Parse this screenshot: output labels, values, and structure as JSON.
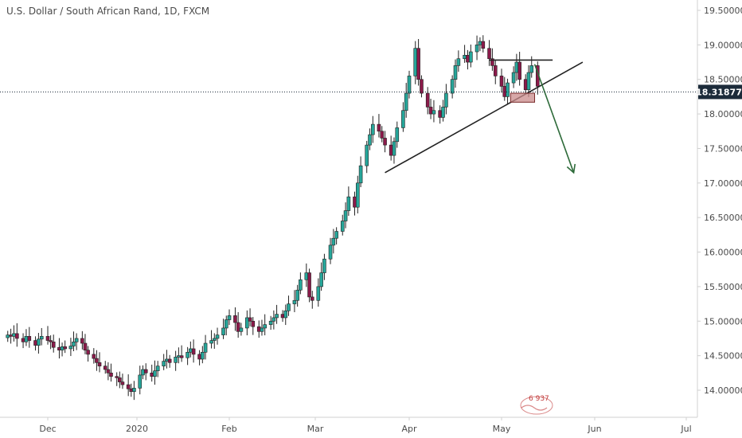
{
  "chart_data": {
    "type": "candlestick",
    "title": "U.S. Dollar / South African Rand, 1D, FXCM",
    "y_ticks": [
      "19.50000",
      "19.00000",
      "18.50000",
      "18.00000",
      "17.50000",
      "17.00000",
      "16.50000",
      "16.00000",
      "15.50000",
      "15.00000",
      "14.50000",
      "14.00000"
    ],
    "y_tick_values": [
      19.5,
      19.0,
      18.5,
      18.0,
      17.5,
      17.0,
      16.5,
      16.0,
      15.5,
      15.0,
      14.5,
      14.0
    ],
    "ylim": [
      13.7,
      19.65
    ],
    "x_ticks": [
      "Dec",
      "2020",
      "Feb",
      "Mar",
      "Apr",
      "May",
      "Jun",
      "Jul"
    ],
    "current_price": "18.31877",
    "current_price_value": 18.31877,
    "colors": {
      "up": "#26a69a",
      "down": "#8b1a4a",
      "wick": "#222222",
      "axis_bg": "#ffffff",
      "badge": "#1c2b3a",
      "arrow": "#2e6b3a",
      "zone": "#c98b8b"
    },
    "annotations": {
      "trendline": {
        "from": [
          "2020-03-24",
          17.15
        ],
        "to": [
          "2020-05-28",
          18.75
        ]
      },
      "resistance": {
        "from": [
          "2020-04-27",
          18.78
        ],
        "to": [
          "2020-05-18",
          18.78
        ],
        "level": 18.78
      },
      "zone": {
        "from": [
          "2020-05-04",
          18.3
        ],
        "to": [
          "2020-05-12",
          18.17
        ]
      },
      "arrow": {
        "from": [
          "2020-05-12",
          18.72
        ],
        "to": [
          "2020-05-25",
          17.15
        ]
      }
    },
    "watermark_label": "6 937",
    "series": []
  }
}
